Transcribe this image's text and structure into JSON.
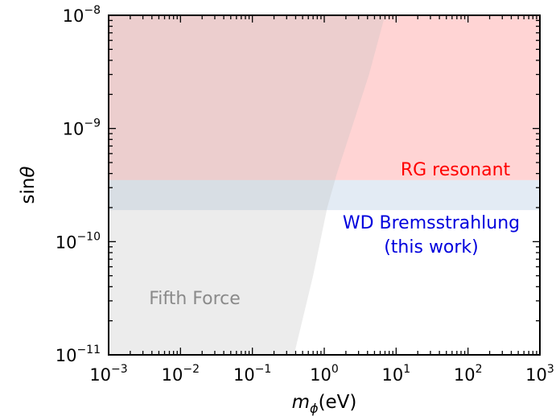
{
  "chart_data": {
    "type": "area",
    "xlabel": {
      "symbol": "m",
      "subscript": "ϕ",
      "unit": "(eV)"
    },
    "ylabel": {
      "prefix": "sin",
      "symbol": "θ"
    },
    "x_scale": "log",
    "y_scale": "log",
    "xlim": [
      0.001,
      1000
    ],
    "ylim": [
      1e-11,
      1e-08
    ],
    "x_ticks": [
      {
        "base": "10",
        "exp": "−3",
        "value": 0.001
      },
      {
        "base": "10",
        "exp": "−2",
        "value": 0.01
      },
      {
        "base": "10",
        "exp": "−1",
        "value": 0.1
      },
      {
        "base": "10",
        "exp": "0",
        "value": 1
      },
      {
        "base": "10",
        "exp": "1",
        "value": 10
      },
      {
        "base": "10",
        "exp": "2",
        "value": 100
      },
      {
        "base": "10",
        "exp": "3",
        "value": 1000
      }
    ],
    "y_ticks": [
      {
        "base": "10",
        "exp": "−11",
        "value": 1e-11
      },
      {
        "base": "10",
        "exp": "−10",
        "value": 1e-10
      },
      {
        "base": "10",
        "exp": "−9",
        "value": 1e-09
      },
      {
        "base": "10",
        "exp": "−8",
        "value": 1e-08
      }
    ],
    "grid": false,
    "regions": [
      {
        "id": "fifth-force",
        "label": "Fifth Force",
        "color": "#bfbfbf",
        "opacity": 0.3,
        "boundary": [
          [
            0.001,
            1e-11
          ],
          [
            0.38,
            1e-11
          ],
          [
            0.7,
            5e-11
          ],
          [
            1.1,
            2e-10
          ],
          [
            1.5,
            4e-10
          ],
          [
            2.4,
            1e-09
          ],
          [
            4.2,
            3e-09
          ],
          [
            7.0,
            1e-08
          ],
          [
            0.001,
            1e-08
          ]
        ]
      },
      {
        "id": "rg-resonant",
        "label": "RG resonant",
        "color": "#ff6060",
        "opacity": 0.27,
        "label_color": "#ff0000",
        "sin_min": 3.5e-10
      },
      {
        "id": "wd-bremsstrahlung",
        "label_lines": [
          "WD Bremsstrahlung",
          "(this work)"
        ],
        "color": "#b0c6e0",
        "opacity": 0.35,
        "label_color": "#0000dd",
        "sin_min": 1.9e-10,
        "sin_max": 3.5e-10
      }
    ]
  }
}
